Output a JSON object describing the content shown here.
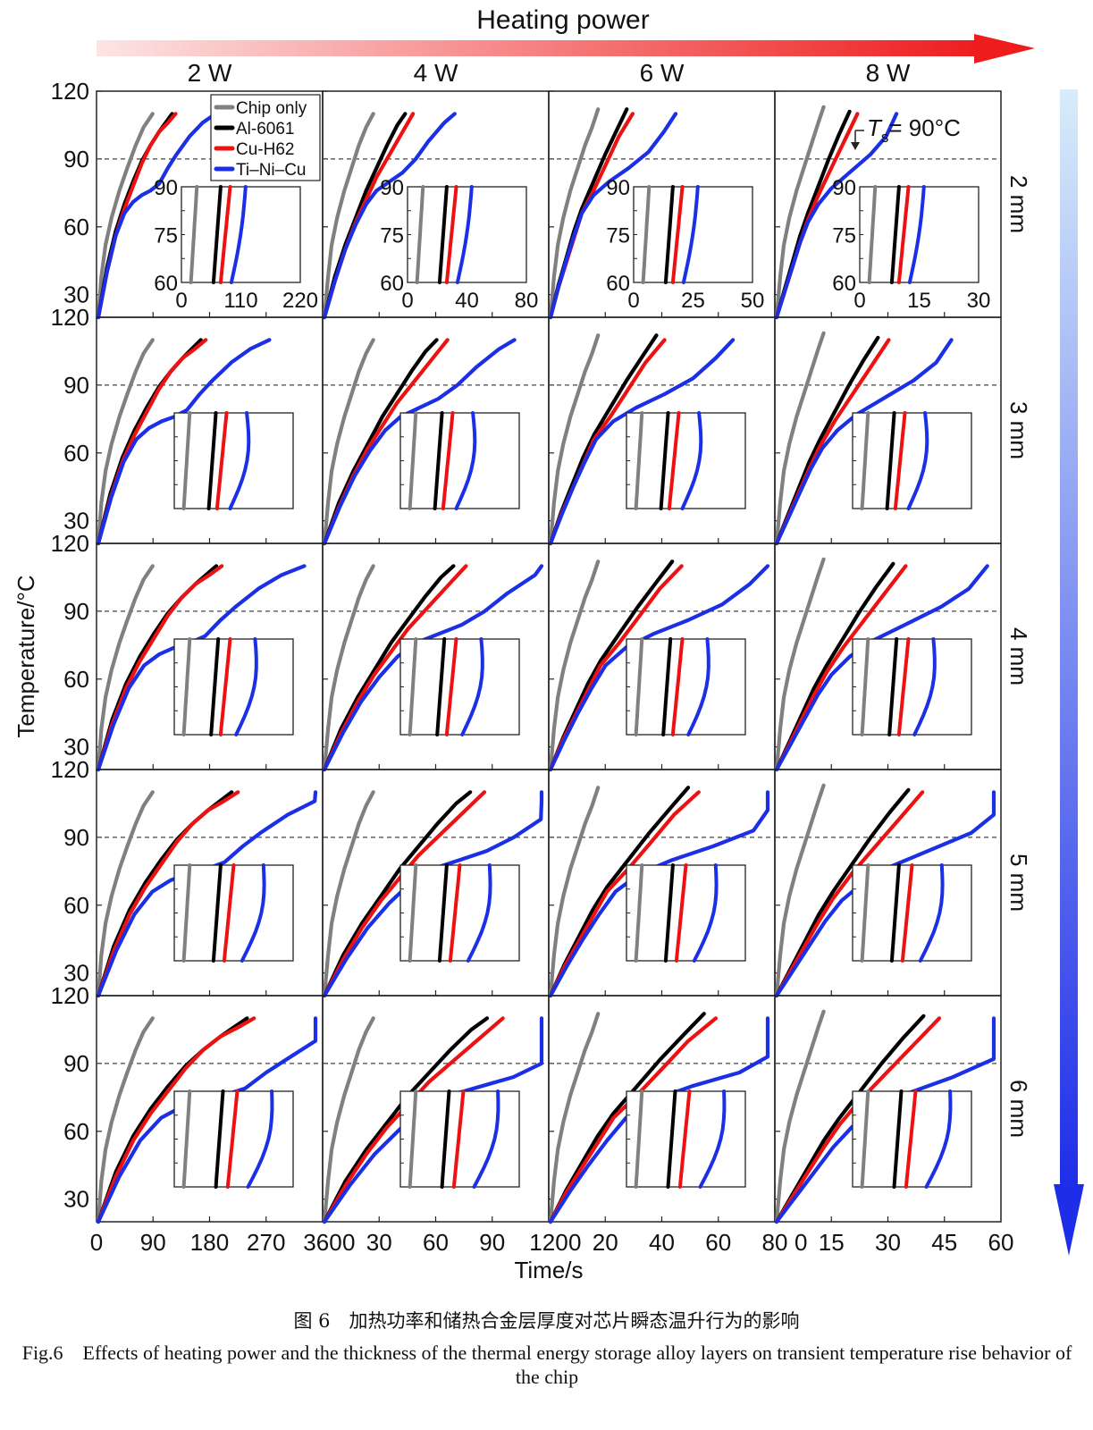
{
  "figure": {
    "header": "Heating power",
    "caption_cn": "图 6　加热功率和储热合金层厚度对芯片瞬态温升行为的影响",
    "caption_en": "Fig.6　Effects of heating power and the thickness of the thermal energy storage alloy layers on transient temperature rise behavior of the chip",
    "colors": {
      "chip": "#808080",
      "al": "#000000",
      "cu": "#ee1111",
      "ti": "#1a2fe6",
      "arrow_h": "#ee1c1c",
      "arrow_v": "#1e2de8"
    },
    "annotation": {
      "prefix": "T",
      "sub": "s",
      "suffix": "= 90°C"
    }
  },
  "chart_data": {
    "type": "line",
    "xlabel": "Time/s",
    "ylabel": "Temperature/°C",
    "ylim": [
      20,
      120
    ],
    "yticks": [
      30,
      60,
      90,
      120
    ],
    "reference_line": 90,
    "columns": [
      {
        "label": "2 W",
        "xlim": [
          0,
          360
        ],
        "xticks": [
          "0",
          "90",
          "180",
          "270",
          "360"
        ]
      },
      {
        "label": "4 W",
        "xlim": [
          0,
          120
        ],
        "xticks": [
          "0",
          "30",
          "60",
          "90",
          "120"
        ]
      },
      {
        "label": "6 W",
        "xlim": [
          0,
          80
        ],
        "xticks": [
          "0",
          "20",
          "40",
          "60",
          "80"
        ]
      },
      {
        "label": "8 W",
        "xlim": [
          0,
          60
        ],
        "xticks": [
          "0",
          "15",
          "30",
          "45",
          "60"
        ]
      }
    ],
    "rows": [
      "2 mm",
      "3 mm",
      "4 mm",
      "5 mm",
      "6 mm"
    ],
    "legend": [
      "Chip only",
      "Al-6061",
      "Cu-H62",
      "Ti–Ni–Cu"
    ],
    "insets": {
      "ylim": [
        60,
        90
      ],
      "yticks": [
        "90",
        "75",
        "60"
      ],
      "xticks": [
        [
          "0",
          "110",
          "220"
        ],
        [
          "0",
          "40",
          "80"
        ],
        [
          "0",
          "25",
          "50"
        ],
        [
          "0",
          "15",
          "30"
        ]
      ]
    },
    "series": [
      {
        "name": "Chip only",
        "color": "#808080",
        "panels": [
          [
            [
              0,
              20
            ],
            [
              5,
              38
            ],
            [
              12,
              52
            ],
            [
              22,
              64
            ],
            [
              35,
              76
            ],
            [
              48,
              86
            ],
            [
              62,
              96
            ],
            [
              75,
              104
            ],
            [
              90,
              110
            ]
          ],
          [
            [
              0,
              20
            ],
            [
              2,
              38
            ],
            [
              4,
              52
            ],
            [
              7,
              64
            ],
            [
              11,
              76
            ],
            [
              15,
              86
            ],
            [
              19,
              96
            ],
            [
              23,
              104
            ],
            [
              27,
              110
            ]
          ],
          [
            [
              0,
              20
            ],
            [
              1.3,
              38
            ],
            [
              2.7,
              52
            ],
            [
              4.7,
              64
            ],
            [
              7.3,
              76
            ],
            [
              10,
              86
            ],
            [
              12.7,
              96
            ],
            [
              15.3,
              104
            ],
            [
              17.5,
              112
            ]
          ],
          [
            [
              0,
              20
            ],
            [
              1,
              38
            ],
            [
              2,
              52
            ],
            [
              3.5,
              64
            ],
            [
              5.5,
              76
            ],
            [
              7.5,
              86
            ],
            [
              9.5,
              96
            ],
            [
              11.5,
              106
            ],
            [
              13,
              113
            ]
          ]
        ]
      },
      {
        "name": "Al-6061",
        "color": "#000000",
        "panels": [
          [
            [
              0,
              20
            ],
            [
              20,
              42
            ],
            [
              40,
              58
            ],
            [
              60,
              70
            ],
            [
              80,
              80
            ],
            [
              100,
              89
            ],
            [
              120,
              96
            ],
            [
              140,
              102
            ],
            [
              155,
              106
            ],
            [
              170,
              110
            ]
          ],
          [
            [
              0,
              20
            ],
            [
              8,
              38
            ],
            [
              16,
              52
            ],
            [
              24,
              64
            ],
            [
              32,
              76
            ],
            [
              40,
              86
            ],
            [
              48,
              96
            ],
            [
              56,
              105
            ],
            [
              62,
              110
            ]
          ],
          [
            [
              0,
              20
            ],
            [
              4,
              34
            ],
            [
              8,
              46
            ],
            [
              12,
              58
            ],
            [
              16,
              68
            ],
            [
              22,
              80
            ],
            [
              28,
              92
            ],
            [
              34,
              103
            ],
            [
              39,
              112
            ]
          ],
          [
            [
              0,
              20
            ],
            [
              3,
              32
            ],
            [
              6,
              44
            ],
            [
              9,
              56
            ],
            [
              12,
              66
            ],
            [
              16,
              78
            ],
            [
              20,
              90
            ],
            [
              24,
              101
            ],
            [
              28,
              111
            ]
          ]
        ]
      },
      {
        "name": "Cu-H62",
        "color": "#ee1111",
        "panels": [
          [
            [
              0,
              20
            ],
            [
              20,
              40
            ],
            [
              40,
              56
            ],
            [
              60,
              68
            ],
            [
              80,
              78
            ],
            [
              100,
              88
            ],
            [
              120,
              96
            ],
            [
              140,
              102
            ],
            [
              160,
              106
            ],
            [
              178,
              110
            ]
          ],
          [
            [
              0,
              20
            ],
            [
              8,
              36
            ],
            [
              16,
              50
            ],
            [
              24,
              62
            ],
            [
              32,
              72
            ],
            [
              40,
              82
            ],
            [
              50,
              92
            ],
            [
              60,
              102
            ],
            [
              68,
              110
            ]
          ],
          [
            [
              0,
              20
            ],
            [
              4,
              33
            ],
            [
              8,
              44
            ],
            [
              12,
              55
            ],
            [
              16,
              66
            ],
            [
              22,
              76
            ],
            [
              28,
              87
            ],
            [
              35,
              100
            ],
            [
              42,
              110
            ]
          ],
          [
            [
              0,
              20
            ],
            [
              3,
              31
            ],
            [
              6,
              42
            ],
            [
              9,
              53
            ],
            [
              12,
              63
            ],
            [
              16,
              74
            ],
            [
              21,
              86
            ],
            [
              26,
              98
            ],
            [
              31,
              110
            ]
          ]
        ]
      },
      {
        "name": "Ti–Ni–Cu",
        "color": "#1a2fe6",
        "panels": [
          [
            [
              0,
              20
            ],
            [
              20,
              40
            ],
            [
              40,
              56
            ],
            [
              60,
              66
            ],
            [
              80,
              71
            ],
            [
              100,
              74
            ],
            [
              120,
              76
            ],
            [
              140,
              79
            ],
            [
              160,
              86
            ],
            [
              180,
              92
            ],
            [
              210,
              100
            ],
            [
              240,
              106
            ],
            [
              270,
              110
            ]
          ],
          [
            [
              0,
              20
            ],
            [
              8,
              36
            ],
            [
              16,
              50
            ],
            [
              24,
              61
            ],
            [
              32,
              70
            ],
            [
              40,
              76
            ],
            [
              50,
              80
            ],
            [
              60,
              84
            ],
            [
              70,
              90
            ],
            [
              80,
              98
            ],
            [
              92,
              106
            ],
            [
              100,
              110
            ]
          ],
          [
            [
              0,
              20
            ],
            [
              4,
              33
            ],
            [
              8,
              45
            ],
            [
              12,
              56
            ],
            [
              16,
              66
            ],
            [
              22,
              74
            ],
            [
              30,
              80
            ],
            [
              40,
              86
            ],
            [
              50,
              93
            ],
            [
              58,
              102
            ],
            [
              64,
              110
            ]
          ],
          [
            [
              0,
              20
            ],
            [
              3,
              31
            ],
            [
              6,
              42
            ],
            [
              9,
              53
            ],
            [
              12,
              62
            ],
            [
              16,
              70
            ],
            [
              21,
              77
            ],
            [
              28,
              84
            ],
            [
              36,
              92
            ],
            [
              42,
              100
            ],
            [
              46,
              110
            ]
          ]
        ]
      }
    ]
  }
}
